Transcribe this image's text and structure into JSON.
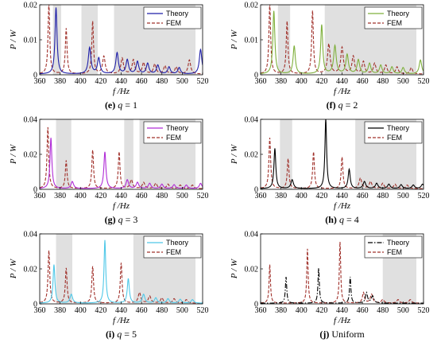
{
  "chart_data": [
    {
      "type": "line",
      "caption": {
        "letter": "(e)",
        "text": "q = 1"
      },
      "xlabel": "f /Hz",
      "ylabel": "P / W",
      "xlim": [
        360,
        520
      ],
      "ylim": [
        0,
        0.02
      ],
      "xticks": [
        "360",
        "380",
        "400",
        "420",
        "440",
        "460",
        "480",
        "500",
        "520"
      ],
      "yticks": [
        "0",
        "0.01",
        "0.02"
      ],
      "bands": [
        [
          373,
          381
        ],
        [
          401,
          417
        ],
        [
          433,
          513
        ]
      ],
      "band_color": "#e0e0e0",
      "theory_color": "#1f1fa8",
      "theory_peaks": [
        [
          376,
          0.019,
          1.2
        ],
        [
          409,
          0.0075,
          1.5
        ],
        [
          418,
          0.0045,
          1.5
        ],
        [
          436,
          0.006,
          1.5
        ],
        [
          446,
          0.004,
          1.5
        ],
        [
          456,
          0.0035,
          1.5
        ],
        [
          466,
          0.003,
          1.5
        ],
        [
          476,
          0.0025,
          1.5
        ],
        [
          487,
          0.002,
          1.5
        ],
        [
          497,
          0.0018,
          1.5
        ],
        [
          518,
          0.007,
          1.5
        ]
      ],
      "fem_peaks": [
        [
          369,
          0.02,
          1.0
        ],
        [
          386,
          0.013,
          1.0
        ],
        [
          412,
          0.015,
          1.0
        ],
        [
          423,
          0.005,
          1.5
        ],
        [
          441,
          0.0045,
          1.5
        ],
        [
          452,
          0.004,
          1.5
        ],
        [
          462,
          0.0032,
          1.5
        ],
        [
          473,
          0.0028,
          1.5
        ],
        [
          483,
          0.0023,
          1.5
        ],
        [
          494,
          0.002,
          1.5
        ],
        [
          507,
          0.004,
          1.5
        ]
      ],
      "legend": [
        "Theory",
        "FEM"
      ]
    },
    {
      "type": "line",
      "caption": {
        "letter": "(f)",
        "text": "q = 2"
      },
      "xlabel": "f /Hz",
      "ylabel": "P / W",
      "xlim": [
        360,
        520
      ],
      "ylim": [
        0,
        0.02
      ],
      "xticks": [
        "360",
        "380",
        "400",
        "420",
        "440",
        "460",
        "480",
        "500",
        "520"
      ],
      "yticks": [
        "0",
        "0.01",
        "0.02"
      ],
      "bands": [
        [
          377,
          389
        ],
        [
          423,
          513
        ]
      ],
      "band_color": "#e0e0e0",
      "theory_color": "#7fb03c",
      "theory_peaks": [
        [
          373,
          0.018,
          1.2
        ],
        [
          393,
          0.008,
          1.3
        ],
        [
          420,
          0.014,
          1.2
        ],
        [
          433,
          0.008,
          1.5
        ],
        [
          445,
          0.0055,
          1.5
        ],
        [
          456,
          0.004,
          1.5
        ],
        [
          467,
          0.003,
          1.5
        ],
        [
          478,
          0.0025,
          1.5
        ],
        [
          489,
          0.002,
          1.5
        ],
        [
          500,
          0.0018,
          1.5
        ],
        [
          517,
          0.004,
          1.5
        ]
      ],
      "fem_peaks": [
        [
          369,
          0.02,
          1.0
        ],
        [
          386,
          0.015,
          1.0
        ],
        [
          411,
          0.018,
          1.0
        ],
        [
          427,
          0.0085,
          1.5
        ],
        [
          440,
          0.0075,
          1.5
        ],
        [
          451,
          0.005,
          1.5
        ],
        [
          461,
          0.0035,
          1.5
        ],
        [
          472,
          0.003,
          1.5
        ],
        [
          483,
          0.0025,
          1.5
        ],
        [
          494,
          0.002,
          1.5
        ],
        [
          508,
          0.0018,
          1.5
        ]
      ],
      "legend": [
        "Theory",
        "FEM"
      ]
    },
    {
      "type": "line",
      "caption": {
        "letter": "(g)",
        "text": "q = 3"
      },
      "xlabel": "f /Hz",
      "ylabel": "P / W",
      "xlim": [
        360,
        520
      ],
      "ylim": [
        0,
        0.04
      ],
      "xticks": [
        "360",
        "380",
        "400",
        "420",
        "440",
        "460",
        "480",
        "500",
        "520"
      ],
      "yticks": [
        "0",
        "0.02",
        "0.04"
      ],
      "bands": [
        [
          376,
          391
        ],
        [
          443,
          452
        ],
        [
          458,
          513
        ]
      ],
      "band_color": "#e0e0e0",
      "theory_color": "#b02cd6",
      "theory_peaks": [
        [
          371,
          0.029,
          1.1
        ],
        [
          392,
          0.004,
          1.5
        ],
        [
          424,
          0.021,
          1.2
        ],
        [
          446,
          0.005,
          1.5
        ],
        [
          456,
          0.0035,
          1.5
        ],
        [
          468,
          0.003,
          1.5
        ],
        [
          480,
          0.0025,
          1.5
        ],
        [
          492,
          0.0022,
          1.5
        ],
        [
          504,
          0.002,
          1.5
        ],
        [
          518,
          0.003,
          1.5
        ]
      ],
      "fem_peaks": [
        [
          368,
          0.035,
          1.0
        ],
        [
          386,
          0.016,
          1.0
        ],
        [
          412,
          0.022,
          1.0
        ],
        [
          438,
          0.021,
          1.0
        ],
        [
          450,
          0.005,
          1.5
        ],
        [
          462,
          0.0035,
          1.5
        ],
        [
          474,
          0.003,
          1.5
        ],
        [
          486,
          0.0025,
          1.5
        ],
        [
          498,
          0.002,
          1.5
        ],
        [
          510,
          0.002,
          1.5
        ]
      ],
      "legend": [
        "Theory",
        "FEM"
      ]
    },
    {
      "type": "line",
      "caption": {
        "letter": "(h)",
        "text": "q = 4"
      },
      "xlabel": "f /Hz",
      "ylabel": "P / W",
      "xlim": [
        360,
        520
      ],
      "ylim": [
        0,
        0.04
      ],
      "xticks": [
        "360",
        "380",
        "400",
        "420",
        "440",
        "460",
        "480",
        "500",
        "520"
      ],
      "yticks": [
        "0",
        "0.02",
        "0.04"
      ],
      "bands": [
        [
          379,
          391
        ],
        [
          453,
          513
        ]
      ],
      "band_color": "#e0e0e0",
      "theory_color": "#000000",
      "theory_peaks": [
        [
          374,
          0.023,
          1.1
        ],
        [
          391,
          0.005,
          1.5
        ],
        [
          424,
          0.04,
          1.0
        ],
        [
          447,
          0.011,
          1.2
        ],
        [
          462,
          0.004,
          1.5
        ],
        [
          474,
          0.003,
          1.5
        ],
        [
          486,
          0.0025,
          1.5
        ],
        [
          498,
          0.0022,
          1.5
        ],
        [
          510,
          0.002,
          1.5
        ],
        [
          519,
          0.0025,
          1.5
        ]
      ],
      "fem_peaks": [
        [
          369,
          0.029,
          1.0
        ],
        [
          387,
          0.017,
          1.0
        ],
        [
          412,
          0.021,
          1.0
        ],
        [
          440,
          0.018,
          1.0
        ],
        [
          458,
          0.006,
          1.5
        ],
        [
          468,
          0.004,
          1.5
        ],
        [
          480,
          0.003,
          1.5
        ],
        [
          492,
          0.0025,
          1.5
        ],
        [
          504,
          0.002,
          1.5
        ]
      ],
      "legend": [
        "Theory",
        "FEM"
      ]
    },
    {
      "type": "line",
      "caption": {
        "letter": "(i)",
        "text": "q = 5"
      },
      "xlabel": "f /Hz",
      "ylabel": "P / W",
      "xlim": [
        360,
        520
      ],
      "ylim": [
        0,
        0.04
      ],
      "xticks": [
        "360",
        "380",
        "400",
        "420",
        "440",
        "460",
        "480",
        "500",
        "520"
      ],
      "yticks": [
        "0",
        "0.02",
        "0.04"
      ],
      "bands": [
        [
          376,
          392
        ],
        [
          452,
          513
        ]
      ],
      "band_color": "#e0e0e0",
      "theory_color": "#4fc8e8",
      "theory_peaks": [
        [
          374,
          0.022,
          1.1
        ],
        [
          391,
          0.005,
          1.5
        ],
        [
          424,
          0.036,
          1.0
        ],
        [
          447,
          0.014,
          1.2
        ],
        [
          462,
          0.005,
          1.5
        ],
        [
          474,
          0.003,
          1.5
        ],
        [
          486,
          0.0025,
          1.5
        ],
        [
          498,
          0.0022,
          1.5
        ],
        [
          510,
          0.002,
          1.5
        ]
      ],
      "fem_peaks": [
        [
          369,
          0.03,
          1.0
        ],
        [
          386,
          0.02,
          1.0
        ],
        [
          412,
          0.021,
          1.0
        ],
        [
          440,
          0.023,
          1.0
        ],
        [
          458,
          0.006,
          1.5
        ],
        [
          468,
          0.004,
          1.5
        ],
        [
          480,
          0.003,
          1.5
        ],
        [
          492,
          0.0025,
          1.5
        ],
        [
          504,
          0.002,
          1.5
        ]
      ],
      "legend": [
        "Theory",
        "FEM"
      ]
    },
    {
      "type": "line",
      "caption": {
        "letter": "(j)",
        "text": "Uniform"
      },
      "xlabel": "f /Hz",
      "ylabel": "P / W",
      "xlim": [
        360,
        520
      ],
      "ylim": [
        0,
        0.04
      ],
      "xticks": [
        "360",
        "380",
        "400",
        "420",
        "440",
        "460",
        "480",
        "500",
        "520"
      ],
      "yticks": [
        "0",
        "0.02",
        "0.04"
      ],
      "bands": [
        [
          480,
          513
        ]
      ],
      "band_color": "#e0e0e0",
      "theory_color": "#000000",
      "theory_dash": "6,2,1.5,2",
      "theory_peaks": [
        [
          385,
          0.015,
          0.8
        ],
        [
          417,
          0.02,
          0.8
        ],
        [
          448,
          0.015,
          0.8
        ],
        [
          464,
          0.006,
          1.2
        ],
        [
          470,
          0.004,
          1.5
        ]
      ],
      "fem_peaks": [
        [
          369,
          0.022,
          0.8
        ],
        [
          406,
          0.031,
          0.8
        ],
        [
          438,
          0.035,
          0.8
        ],
        [
          461,
          0.006,
          1.2
        ],
        [
          469,
          0.005,
          1.5
        ],
        [
          480,
          0.002,
          1.5
        ],
        [
          495,
          0.002,
          1.5
        ],
        [
          507,
          0.002,
          1.5
        ]
      ],
      "legend": [
        "Theory",
        "FEM"
      ]
    }
  ]
}
